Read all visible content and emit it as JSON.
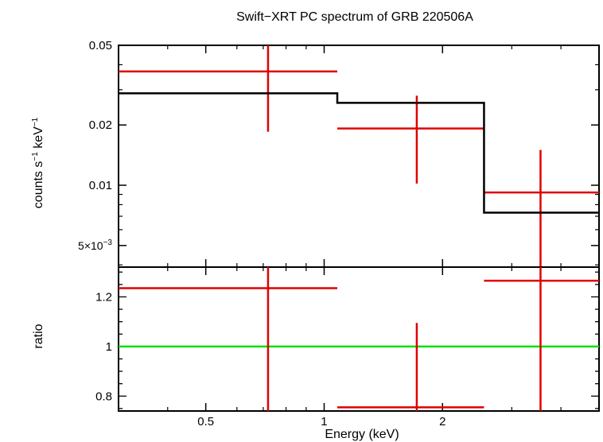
{
  "chart_data": [
    {
      "type": "scatter",
      "panel": "spectrum",
      "title": "Swift−XRT PC spectrum of GRB 220506A",
      "xscale": "log",
      "yscale": "log",
      "xlim": [
        0.3,
        5.0
      ],
      "ylim": [
        0.0039,
        0.05
      ],
      "ylabel": {
        "base": "counts s",
        "exp1": "−1",
        "mid": " keV",
        "exp2": "−1"
      },
      "yticks": [
        {
          "value": 0.05,
          "label": "0.05"
        },
        {
          "value": 0.02,
          "label": "0.02"
        },
        {
          "value": 0.01,
          "label": "0.01"
        },
        {
          "value": 0.005,
          "label": "5×10",
          "exp": "−3"
        }
      ],
      "series": [
        {
          "kind": "data",
          "color": "#e00000",
          "points": [
            {
              "x": 0.72,
              "xlo": 0.3,
              "xhi": 1.08,
              "y": 0.037,
              "ylo": 0.0185,
              "yhi": 0.05
            },
            {
              "x": 1.72,
              "xlo": 1.08,
              "xhi": 2.55,
              "y": 0.0192,
              "ylo": 0.0102,
              "yhi": 0.028
            },
            {
              "x": 3.55,
              "xlo": 2.55,
              "xhi": 5.0,
              "y": 0.0092,
              "ylo": 0.0039,
              "yhi": 0.015
            }
          ]
        },
        {
          "kind": "model",
          "color": "#000000",
          "steps": [
            {
              "xlo": 0.3,
              "xhi": 1.08,
              "y": 0.0288
            },
            {
              "xlo": 1.08,
              "xhi": 2.55,
              "y": 0.0258
            },
            {
              "xlo": 2.55,
              "xhi": 5.0,
              "y": 0.0073
            }
          ]
        }
      ]
    },
    {
      "type": "scatter",
      "panel": "ratio",
      "xscale": "log",
      "yscale": "linear",
      "xlim": [
        0.3,
        5.0
      ],
      "ylim": [
        0.74,
        1.32
      ],
      "xlabel": "Energy (keV)",
      "ylabel": "ratio",
      "xticks": [
        {
          "value": 0.5,
          "label": "0.5"
        },
        {
          "value": 1,
          "label": "1"
        },
        {
          "value": 2,
          "label": "2"
        }
      ],
      "yticks": [
        {
          "value": 1.2,
          "label": "1.2"
        },
        {
          "value": 1,
          "label": "1"
        },
        {
          "value": 0.8,
          "label": "0.8"
        }
      ],
      "reference_line": {
        "y": 1,
        "color": "#00e000"
      },
      "series": [
        {
          "kind": "data",
          "color": "#e00000",
          "points": [
            {
              "x": 0.72,
              "xlo": 0.3,
              "xhi": 1.08,
              "y": 1.235,
              "ylo": 0.74,
              "yhi": 1.32
            },
            {
              "x": 1.72,
              "xlo": 1.08,
              "xhi": 2.55,
              "y": 0.755,
              "ylo": 0.74,
              "yhi": 1.095
            },
            {
              "x": 3.55,
              "xlo": 2.55,
              "xhi": 5.0,
              "y": 1.265,
              "ylo": 0.74,
              "yhi": 1.32
            }
          ]
        }
      ]
    }
  ]
}
